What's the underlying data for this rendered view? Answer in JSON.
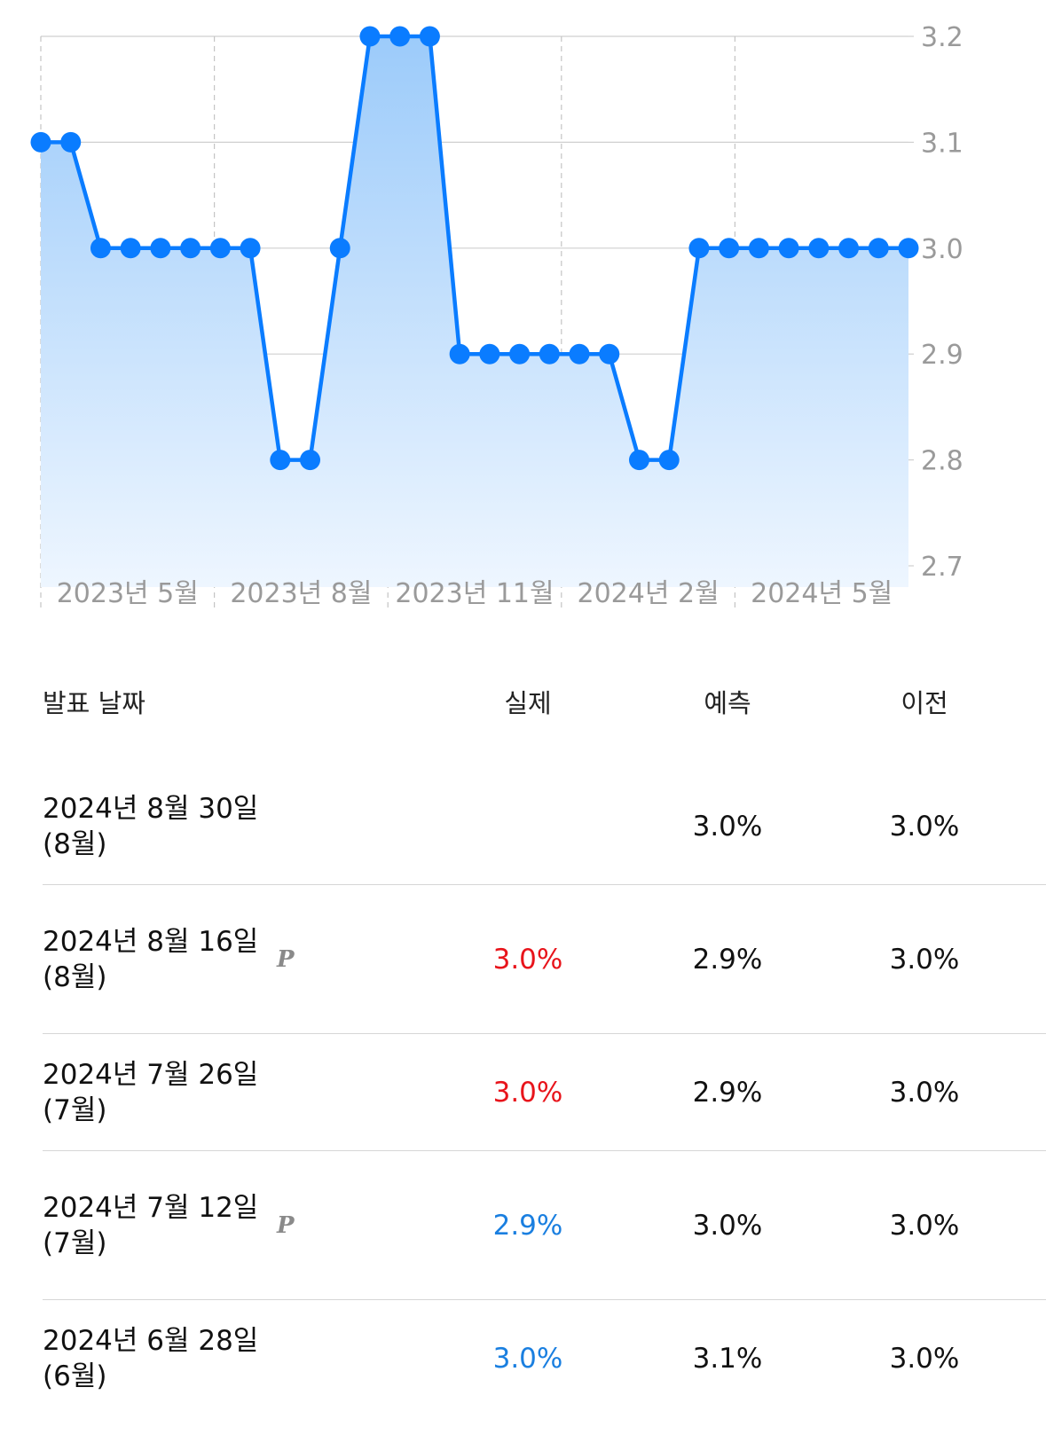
{
  "chart_data": {
    "type": "area",
    "y_ticks": [
      "3.2",
      "3.1",
      "3.0",
      "2.9",
      "2.8",
      "2.7"
    ],
    "ylim": [
      2.7,
      3.2
    ],
    "x_tick_labels": [
      "2023년 5월",
      "2023년 8월",
      "2023년 11월",
      "2024년 2월",
      "2024년 5월"
    ],
    "grid": true,
    "series": [
      {
        "values": [
          3.1,
          3.1,
          3.0,
          3.0,
          3.0,
          3.0,
          3.0,
          3.0,
          2.8,
          2.8,
          3.0,
          3.2,
          3.2,
          3.2,
          2.9,
          2.9,
          2.9,
          2.9,
          2.9,
          2.9,
          2.8,
          2.8,
          3.0,
          3.0,
          3.0,
          3.0,
          3.0,
          3.0,
          3.0,
          3.0
        ]
      }
    ],
    "line_color": "#0a7cff",
    "fill_color": "#a6cefa"
  },
  "table": {
    "headers": {
      "date": "발표 날짜",
      "actual": "실제",
      "forecast": "예측",
      "previous": "이전"
    },
    "rows": [
      {
        "date": "2024년 8월 30일 (8월)",
        "preliminary": "",
        "actual": "",
        "actual_trend": "",
        "forecast": "3.0%",
        "previous": "3.0%"
      },
      {
        "date": "2024년 8월 16일 (8월)",
        "preliminary": "P",
        "actual": "3.0%",
        "actual_trend": "up",
        "forecast": "2.9%",
        "previous": "3.0%"
      },
      {
        "date": "2024년 7월 26일 (7월)",
        "preliminary": "",
        "actual": "3.0%",
        "actual_trend": "up",
        "forecast": "2.9%",
        "previous": "3.0%"
      },
      {
        "date": "2024년 7월 12일 (7월)",
        "preliminary": "P",
        "actual": "2.9%",
        "actual_trend": "down",
        "forecast": "3.0%",
        "previous": "3.0%"
      },
      {
        "date": "2024년 6월 28일 (6월)",
        "preliminary": "",
        "actual": "3.0%",
        "actual_trend": "down",
        "forecast": "3.1%",
        "previous": "3.0%"
      }
    ],
    "colors": {
      "up": "#e8141b",
      "down": "#1a7fe0"
    }
  }
}
